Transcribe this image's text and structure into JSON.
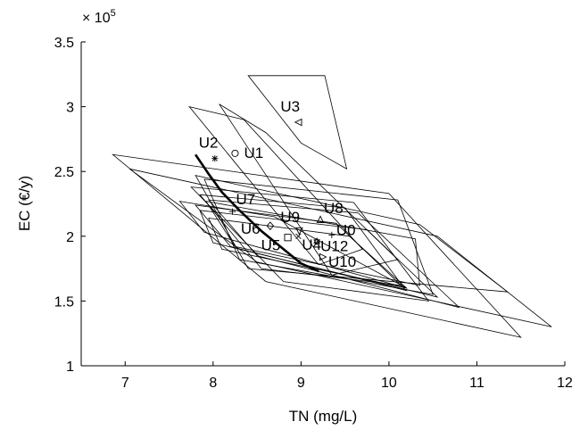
{
  "chart_data": {
    "type": "scatter",
    "xlabel": "TN (mg/L)",
    "ylabel": "EC (€/y)",
    "y_exponent_label": "× 10",
    "y_exponent_power": "5",
    "xlim": [
      6.5,
      12
    ],
    "ylim": [
      1.0,
      3.5
    ],
    "x_ticks": [
      7,
      8,
      9,
      10,
      11,
      12
    ],
    "y_ticks": [
      1,
      1.5,
      2,
      2.5,
      3,
      3.5
    ],
    "x_tick_labels": [
      "7",
      "8",
      "9",
      "10",
      "11",
      "12"
    ],
    "y_tick_labels": [
      "1",
      "1.5",
      "2",
      "2.5",
      "3",
      "3.5"
    ],
    "grid": false,
    "points": [
      {
        "label": "U1",
        "x": 8.25,
        "y": 2.64,
        "marker": "circle"
      },
      {
        "label": "U2",
        "x": 8.02,
        "y": 2.6,
        "marker": "star"
      },
      {
        "label": "U3",
        "x": 8.97,
        "y": 2.88,
        "marker": "triangle-left"
      },
      {
        "label": "U7",
        "x": 8.22,
        "y": 2.19,
        "marker": "plus"
      },
      {
        "label": "U6",
        "x": 8.65,
        "y": 2.08,
        "marker": "diamond"
      },
      {
        "label": "U9",
        "x": 8.98,
        "y": 2.04,
        "marker": "triangle-down"
      },
      {
        "label": "U8",
        "x": 9.22,
        "y": 2.13,
        "marker": "triangle-up"
      },
      {
        "label": "U0",
        "x": 9.35,
        "y": 2.01,
        "marker": "plus"
      },
      {
        "label": "U5",
        "x": 8.85,
        "y": 1.99,
        "marker": "square"
      },
      {
        "label": "U4",
        "x": 8.97,
        "y": 2.0,
        "marker": "x"
      },
      {
        "label": "U12",
        "x": 9.18,
        "y": 1.96,
        "marker": "hexagram"
      },
      {
        "label": "U10",
        "x": 9.25,
        "y": 1.84,
        "marker": "triangle-right"
      }
    ],
    "frontier_curve": [
      {
        "x": 7.8,
        "y": 2.63
      },
      {
        "x": 7.95,
        "y": 2.48
      },
      {
        "x": 8.1,
        "y": 2.34
      },
      {
        "x": 8.3,
        "y": 2.2
      },
      {
        "x": 8.55,
        "y": 2.04
      },
      {
        "x": 8.8,
        "y": 1.9
      },
      {
        "x": 9.0,
        "y": 1.79
      },
      {
        "x": 9.2,
        "y": 1.73
      }
    ],
    "regions": [
      [
        [
          8.4,
          3.24
        ],
        [
          9.27,
          3.24
        ],
        [
          9.52,
          2.52
        ],
        [
          9.0,
          2.72
        ]
      ],
      [
        [
          7.73,
          3.0
        ],
        [
          8.35,
          2.9
        ],
        [
          9.7,
          1.9
        ],
        [
          9.2,
          1.78
        ]
      ],
      [
        [
          8.07,
          3.02
        ],
        [
          8.6,
          2.8
        ],
        [
          10.1,
          1.82
        ],
        [
          9.35,
          1.7
        ]
      ],
      [
        [
          6.86,
          2.63
        ],
        [
          10.0,
          2.33
        ],
        [
          11.5,
          1.22
        ],
        [
          8.6,
          1.65
        ]
      ],
      [
        [
          7.05,
          2.52
        ],
        [
          10.55,
          2.0
        ],
        [
          11.85,
          1.3
        ],
        [
          8.5,
          1.8
        ]
      ],
      [
        [
          7.8,
          2.47
        ],
        [
          10.35,
          2.09
        ],
        [
          11.35,
          1.57
        ],
        [
          8.4,
          1.75
        ]
      ],
      [
        [
          7.9,
          2.44
        ],
        [
          10.1,
          2.28
        ],
        [
          10.5,
          1.55
        ],
        [
          8.3,
          1.82
        ]
      ],
      [
        [
          7.75,
          2.38
        ],
        [
          9.6,
          2.26
        ],
        [
          10.45,
          1.5
        ],
        [
          8.8,
          1.65
        ]
      ],
      [
        [
          7.85,
          2.32
        ],
        [
          9.5,
          2.22
        ],
        [
          10.15,
          1.62
        ],
        [
          8.55,
          1.75
        ]
      ],
      [
        [
          7.95,
          2.28
        ],
        [
          9.65,
          2.18
        ],
        [
          10.8,
          1.45
        ],
        [
          8.5,
          1.85
        ]
      ],
      [
        [
          7.8,
          2.24
        ],
        [
          9.4,
          2.1
        ],
        [
          10.2,
          1.58
        ],
        [
          8.2,
          1.92
        ]
      ],
      [
        [
          7.85,
          2.2
        ],
        [
          9.75,
          2.05
        ],
        [
          10.55,
          1.53
        ],
        [
          8.0,
          1.95
        ]
      ],
      [
        [
          7.95,
          2.14
        ],
        [
          9.55,
          2.0
        ],
        [
          10.2,
          1.6
        ],
        [
          8.1,
          1.9
        ]
      ],
      [
        [
          7.92,
          2.27
        ],
        [
          10.3,
          1.98
        ],
        [
          10.35,
          1.62
        ],
        [
          8.25,
          1.92
        ]
      ],
      [
        [
          7.62,
          2.27
        ],
        [
          8.7,
          2.15
        ],
        [
          10.2,
          1.6
        ],
        [
          7.9,
          2.03
        ]
      ]
    ]
  }
}
